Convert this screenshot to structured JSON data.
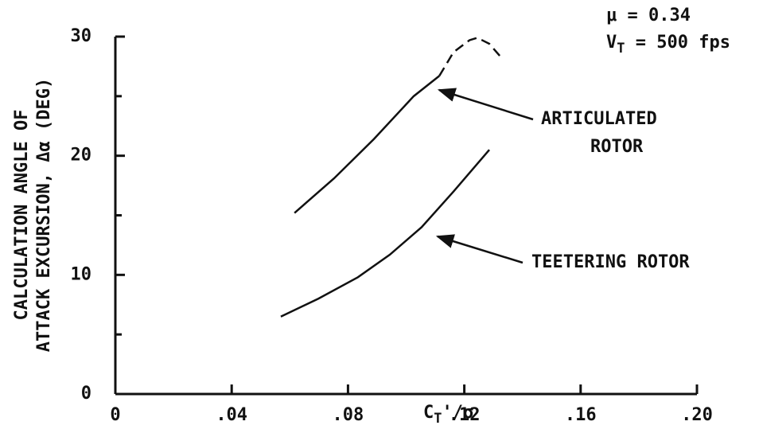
{
  "chart_data": {
    "type": "line",
    "y_label_lines": [
      "CALCULATION ANGLE OF",
      "ATTACK EXCURSION, Δα (DEG)"
    ],
    "x_label": {
      "main": "C",
      "sub": "T",
      "rest": "'/σ"
    },
    "annotations": [
      {
        "parts": [
          "μ = 0.34"
        ]
      },
      {
        "parts": [
          "V",
          "T",
          " = 500 fps"
        ]
      }
    ],
    "xlim": [
      0,
      0.2
    ],
    "xticks": [
      {
        "value": 0,
        "label": "0"
      },
      {
        "value": 0.04,
        "label": ".04"
      },
      {
        "value": 0.08,
        "label": ".08"
      },
      {
        "value": 0.12,
        "label": ".12"
      },
      {
        "value": 0.16,
        "label": ".16"
      },
      {
        "value": 0.2,
        "label": ".20"
      }
    ],
    "ylim": [
      0,
      30
    ],
    "yticks": [
      0,
      10,
      20,
      30
    ],
    "yminor_ticks": [
      5,
      15,
      25
    ],
    "color": "#111111",
    "series": [
      {
        "name": "ARTICULATED ROTOR",
        "label_lines": [
          "ARTICULATED",
          "ROTOR"
        ],
        "dash_from_index": 4,
        "x": [
          0.0616,
          0.0752,
          0.0889,
          0.1026,
          0.1114,
          0.1163,
          0.1218,
          0.1245,
          0.1286,
          0.1332
        ],
        "values": [
          15.2,
          18.1,
          21.4,
          25.0,
          26.7,
          28.7,
          29.7,
          29.9,
          29.4,
          28.1
        ]
      },
      {
        "name": "TEETERING ROTOR",
        "label_lines": [
          "TEETERING ROTOR"
        ],
        "x": [
          0.0569,
          0.0698,
          0.0834,
          0.0944,
          0.1053,
          0.1163,
          0.1286
        ],
        "values": [
          6.5,
          8.0,
          9.8,
          11.7,
          14.0,
          17.0,
          20.5
        ]
      }
    ]
  }
}
